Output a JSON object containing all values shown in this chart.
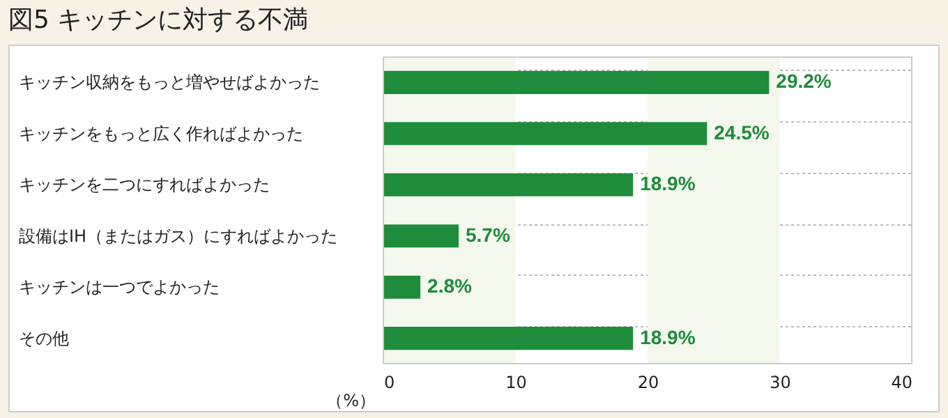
{
  "chart_data": {
    "type": "bar",
    "title": "図5 キッチンに対する不満",
    "orientation": "horizontal",
    "categories": [
      "キッチン収納をもっと増やせばよかった",
      "キッチンをもっと広く作ればよかった",
      "キッチンを二つにすればよかった",
      "設備はIH（またはガス）にすればよかった",
      "キッチンは一つでよかった",
      "その他"
    ],
    "values": [
      29.2,
      24.5,
      18.9,
      5.7,
      2.8,
      18.9
    ],
    "value_labels": [
      "29.2%",
      "24.5%",
      "18.9%",
      "5.7%",
      "2.8%",
      "18.9%"
    ],
    "color": "#1e8c3a",
    "xlabel": "（%）",
    "xlim": [
      0,
      40
    ],
    "xticks": [
      0,
      10,
      20,
      30,
      40
    ],
    "grid": "y",
    "bands": [
      {
        "axis": "x",
        "from": 0,
        "to": 10,
        "color": "#f3f7ec"
      },
      {
        "axis": "x",
        "from": 20,
        "to": 30,
        "color": "#f3f7ec"
      }
    ]
  }
}
